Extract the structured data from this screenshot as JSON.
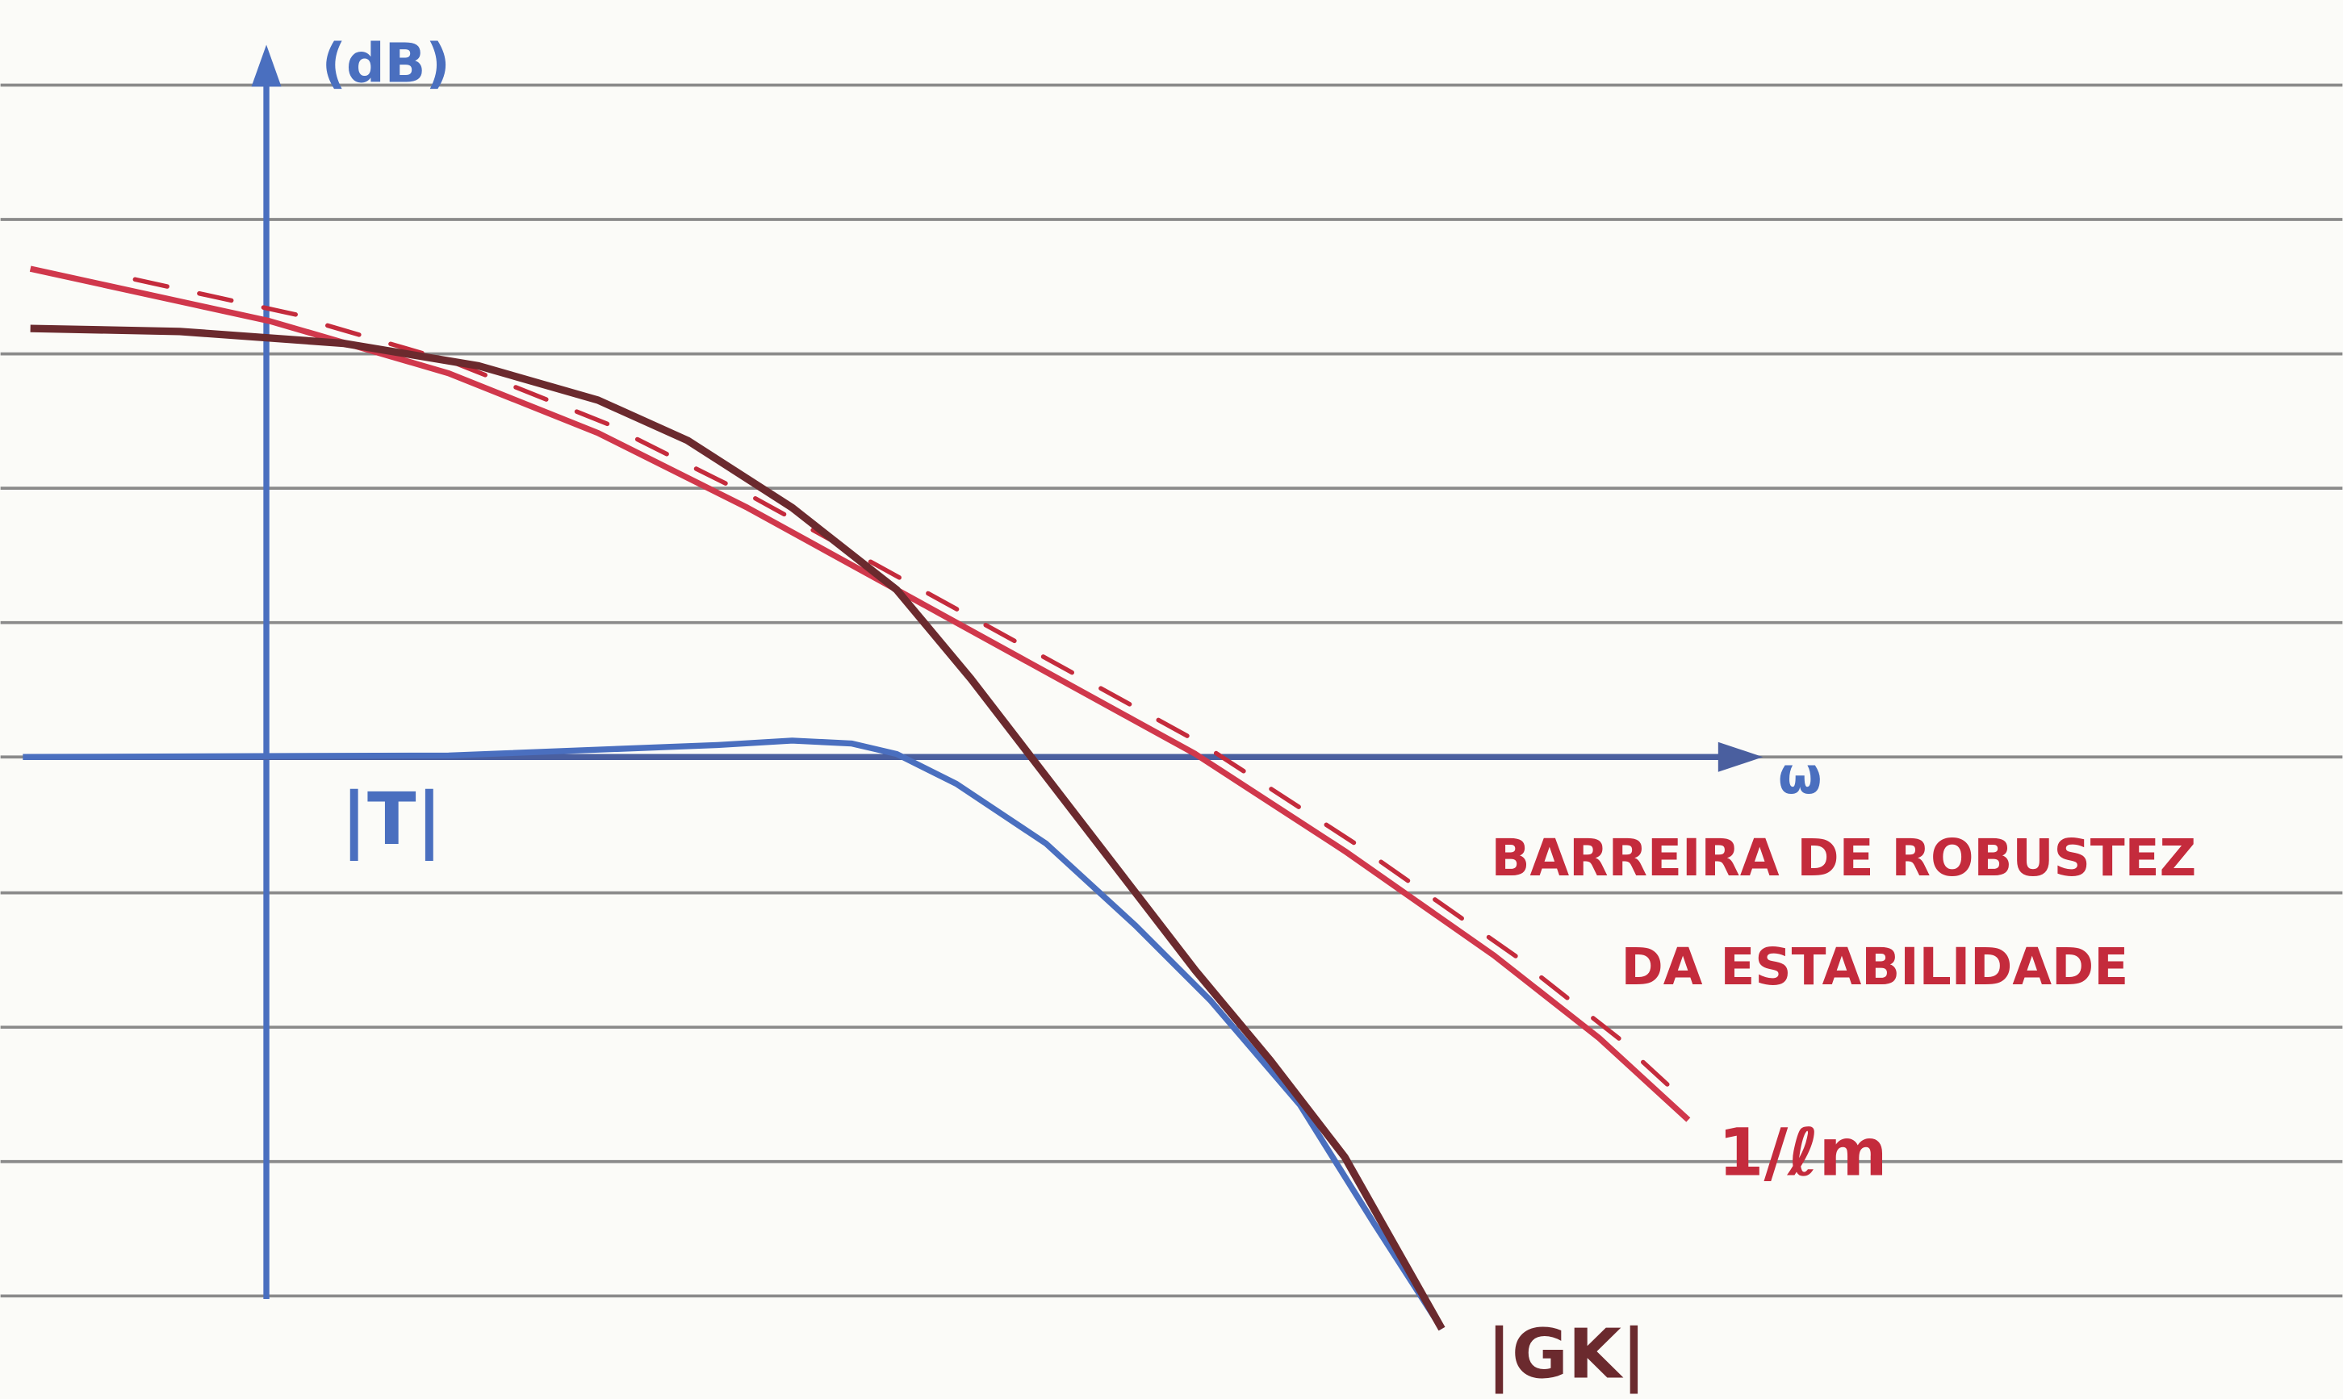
{
  "axes": {
    "y_label": "(dB)",
    "x_label": "ω"
  },
  "curves": {
    "t": "|T|",
    "gk": "|GK|",
    "barrier": "1/ℓm"
  },
  "annotation": {
    "lines": [
      "BARREIRA DE ROBUSTEZ",
      "DA ESTABILIDADE"
    ]
  }
}
